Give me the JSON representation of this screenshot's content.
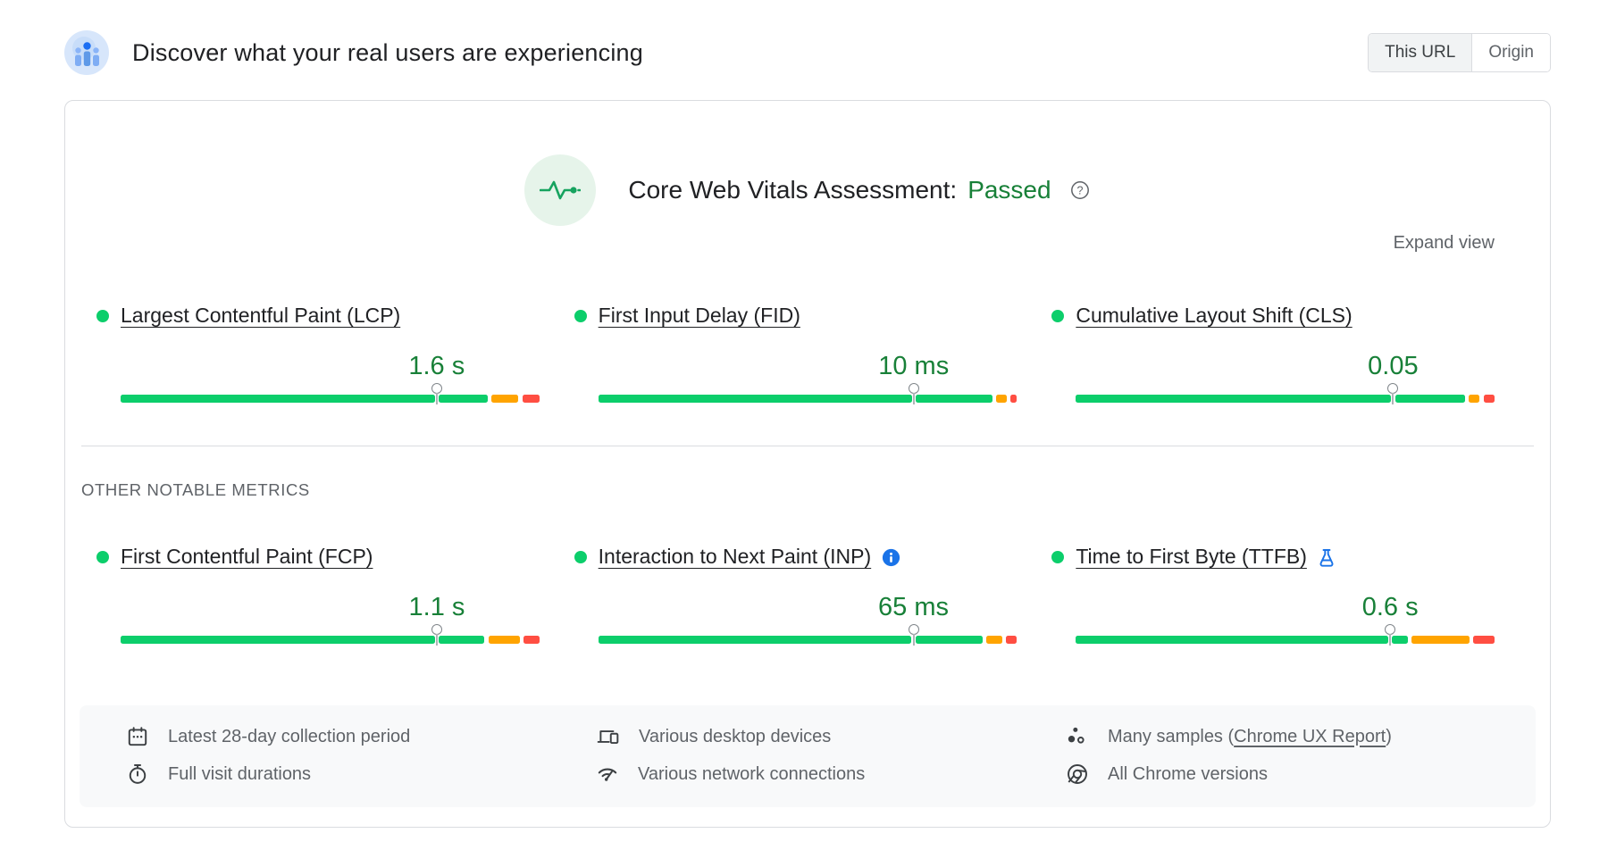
{
  "colors": {
    "green": "#0cce6b",
    "orange": "#ffa400",
    "red": "#ff4e42",
    "green_text": "#188038",
    "blue": "#1a73e8",
    "border": "#dadce0",
    "gray_text": "#5f6368",
    "strip_bg": "#f8f9fa"
  },
  "header": {
    "icon": "field-data-users-icon",
    "title": "Discover what your real users are experiencing",
    "toggle": {
      "this_url": "This URL",
      "origin": "Origin",
      "selected": "This URL"
    }
  },
  "assessment": {
    "icon": "pulse-icon",
    "label": "Core Web Vitals Assessment:",
    "status": "Passed",
    "help_icon": "help-icon",
    "expand_label": "Expand view"
  },
  "sections": {
    "other_metrics_heading": "OTHER NOTABLE METRICS"
  },
  "metrics": {
    "core": [
      {
        "id": "lcp",
        "label": "Largest Contentful Paint (LCP)",
        "value": "1.6 s",
        "status": "good",
        "segments": [
          {
            "color": "green",
            "width_pct": 73.5
          },
          {
            "color": "green",
            "width_pct": 11.5
          },
          {
            "color": "orange",
            "width_pct": 6.3
          },
          {
            "color": "red",
            "width_pct": 4.0
          }
        ]
      },
      {
        "id": "fid",
        "label": "First Input Delay (FID)",
        "value": "10 ms",
        "status": "good",
        "segments": [
          {
            "color": "green",
            "width_pct": 73.5
          },
          {
            "color": "green",
            "width_pct": 18.0
          },
          {
            "color": "orange",
            "width_pct": 2.5
          },
          {
            "color": "red",
            "width_pct": 1.5
          }
        ]
      },
      {
        "id": "cls",
        "label": "Cumulative Layout Shift (CLS)",
        "value": "0.05",
        "status": "good",
        "segments": [
          {
            "color": "green",
            "width_pct": 74.0
          },
          {
            "color": "green",
            "width_pct": 16.4
          },
          {
            "color": "orange",
            "width_pct": 2.6
          },
          {
            "color": "red",
            "width_pct": 2.6
          }
        ]
      }
    ],
    "other": [
      {
        "id": "fcp",
        "label": "First Contentful Paint (FCP)",
        "value": "1.1 s",
        "status": "good",
        "segments": [
          {
            "color": "green",
            "width_pct": 74.0
          },
          {
            "color": "green",
            "width_pct": 10.8
          },
          {
            "color": "orange",
            "width_pct": 7.4
          },
          {
            "color": "red",
            "width_pct": 3.7
          }
        ]
      },
      {
        "id": "inp",
        "label": "Interaction to Next Paint (INP)",
        "value": "65 ms",
        "status": "good",
        "badge": "info-icon",
        "segments": [
          {
            "color": "green",
            "width_pct": 74.3
          },
          {
            "color": "green",
            "width_pct": 16.0
          },
          {
            "color": "orange",
            "width_pct": 3.7
          },
          {
            "color": "red",
            "width_pct": 2.6
          }
        ]
      },
      {
        "id": "ttfb",
        "label": "Time to First Byte (TTFB)",
        "value": "0.6 s",
        "status": "good",
        "badge": "flask-icon",
        "segments": [
          {
            "color": "green",
            "width_pct": 73.7
          },
          {
            "color": "green",
            "width_pct": 3.7
          },
          {
            "color": "orange",
            "width_pct": 13.7
          },
          {
            "color": "red",
            "width_pct": 5.0
          }
        ]
      }
    ]
  },
  "footer": {
    "items": [
      {
        "icon": "calendar-icon",
        "text": "Latest 28-day collection period"
      },
      {
        "icon": "stopwatch-icon",
        "text": "Full visit durations"
      },
      {
        "icon": "devices-icon",
        "text": "Various desktop devices"
      },
      {
        "icon": "network-icon",
        "text": "Various network connections"
      },
      {
        "icon": "samples-icon",
        "prefix": "Many samples (",
        "link": "Chrome UX Report",
        "suffix": ")"
      },
      {
        "icon": "chrome-icon",
        "text": "All Chrome versions"
      }
    ]
  }
}
